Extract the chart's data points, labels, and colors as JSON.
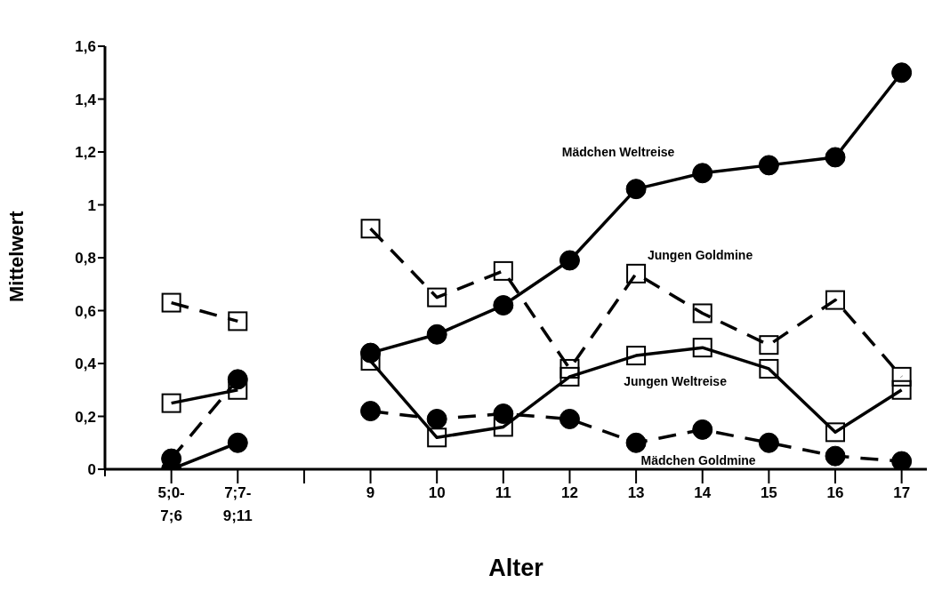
{
  "chart_data": {
    "type": "line",
    "xlabel": "Alter",
    "ylabel": "Mittelwert",
    "categories": [
      "5;0-7;6",
      "7;7-9;11",
      null,
      "9",
      "10",
      "11",
      "12",
      "13",
      "14",
      "15",
      "16",
      "17"
    ],
    "ylim": [
      0,
      1.6
    ],
    "yticks": [
      {
        "value": 0,
        "label": "0"
      },
      {
        "value": 0.2,
        "label": "0,2"
      },
      {
        "value": 0.4,
        "label": "0,4"
      },
      {
        "value": 0.6,
        "label": "0,6"
      },
      {
        "value": 0.8,
        "label": "0,8"
      },
      {
        "value": 1,
        "label": "1"
      },
      {
        "value": 1.2,
        "label": "1,2"
      },
      {
        "value": 1.4,
        "label": "1,4"
      },
      {
        "value": 1.6,
        "label": "1,6"
      }
    ],
    "grid": false,
    "legend": false,
    "series": [
      {
        "name": "Mädchen Weltreise",
        "color": "#000000",
        "marker": "circle",
        "line_style": "solid",
        "values": [
          0,
          0.1,
          null,
          0.44,
          0.51,
          0.62,
          0.79,
          1.06,
          1.12,
          1.15,
          1.18,
          1.5
        ]
      },
      {
        "name": "Mädchen Goldmine",
        "color": "#000000",
        "marker": "circle",
        "line_style": "dashed",
        "values": [
          0.04,
          0.34,
          null,
          0.22,
          0.19,
          0.21,
          0.19,
          0.1,
          0.15,
          0.1,
          0.05,
          0.03
        ]
      },
      {
        "name": "Jungen Goldmine",
        "color": "#000000",
        "marker": "square",
        "line_style": "dashed",
        "values": [
          0.63,
          0.56,
          null,
          0.91,
          0.65,
          0.75,
          0.38,
          0.74,
          0.59,
          0.47,
          0.64,
          0.35
        ]
      },
      {
        "name": "Jungen Weltreise",
        "color": "#000000",
        "marker": "square",
        "line_style": "solid",
        "values": [
          0.25,
          0.3,
          null,
          0.41,
          0.12,
          0.16,
          0.35,
          0.43,
          0.46,
          0.38,
          0.14,
          0.3
        ]
      }
    ]
  }
}
